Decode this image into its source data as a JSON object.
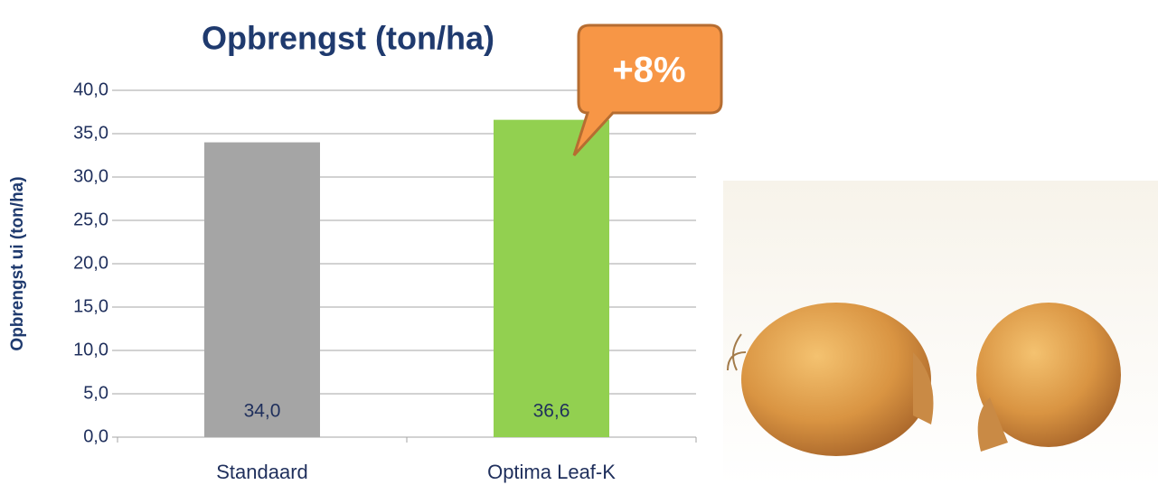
{
  "chart_data": {
    "type": "bar",
    "title": "Opbrengst (ton/ha)",
    "y_label": "Opbrengst ui (ton/ha)",
    "annotation": "+8%",
    "categories": [
      "Standaard",
      "Optima Leaf-K"
    ],
    "values": [
      34.0,
      36.6
    ],
    "value_labels": [
      "34,0",
      "36,6"
    ],
    "colors": [
      "#a5a5a5",
      "#92d050"
    ],
    "ylim": [
      0,
      40
    ],
    "yticks": [
      {
        "value": 0,
        "label": "0,0"
      },
      {
        "value": 5,
        "label": "5,0"
      },
      {
        "value": 10,
        "label": "10,0"
      },
      {
        "value": 15,
        "label": "15,0"
      },
      {
        "value": 20,
        "label": "20,0"
      },
      {
        "value": 25,
        "label": "25,0"
      },
      {
        "value": 30,
        "label": "30,0"
      },
      {
        "value": 35,
        "label": "35,0"
      },
      {
        "value": 40,
        "label": "40,0"
      }
    ],
    "grid": true
  }
}
